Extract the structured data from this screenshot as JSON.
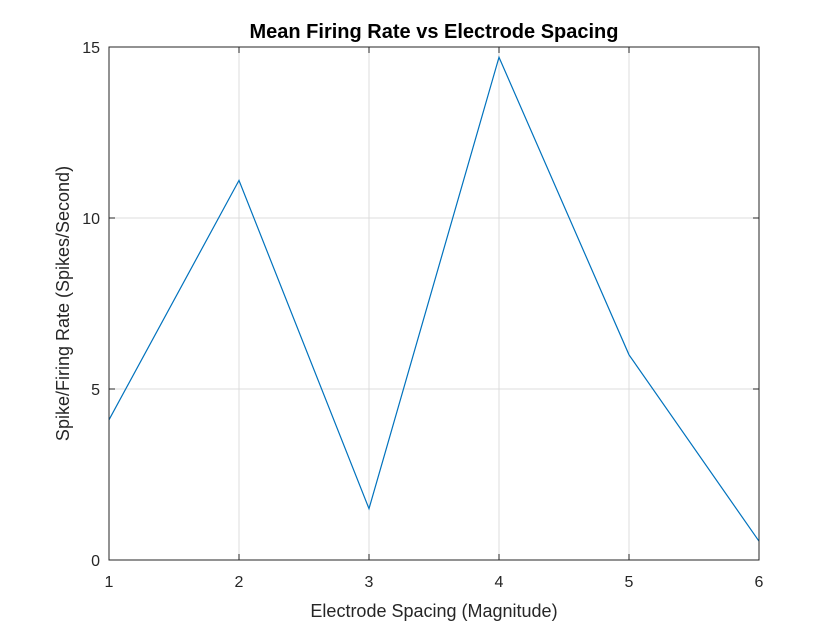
{
  "chart_data": {
    "type": "line",
    "title": "Mean Firing Rate vs Electrode Spacing",
    "xlabel": "Electrode Spacing (Magnitude)",
    "ylabel": "Spike/Firing Rate (Spikes/Second)",
    "xlim": [
      1,
      6
    ],
    "ylim": [
      0,
      15
    ],
    "xticks": [
      1,
      2,
      3,
      4,
      5,
      6
    ],
    "yticks": [
      0,
      5,
      10,
      15
    ],
    "grid": true,
    "box": true,
    "series": [
      {
        "color": "#0072bd",
        "x": [
          1,
          2,
          3,
          4,
          5,
          6
        ],
        "y": [
          4.1,
          11.1,
          1.5,
          14.7,
          6.0,
          0.55
        ]
      }
    ]
  }
}
